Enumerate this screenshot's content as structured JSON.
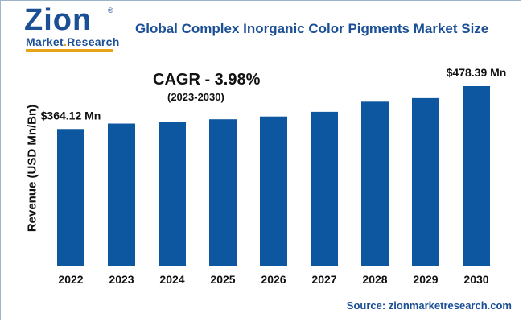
{
  "logo": {
    "main": "Zion",
    "sub_part1": "Market",
    "sub_dot": ".",
    "sub_part2": "Research",
    "reg_mark": "®"
  },
  "source": "Source: zionmarketresearch.com",
  "colors": {
    "bar": "#0d57a0",
    "title": "#1b4f96",
    "accent": "#e8a31a"
  },
  "chart_data": {
    "type": "bar",
    "title": "Global Complex Inorganic Color Pigments Market Size",
    "annotation": "CAGR - 3.98%",
    "annotation_sub": "(2023-2030)",
    "xlabel": "",
    "ylabel": "Revenue (USD Mn/Bn)",
    "categories": [
      "2022",
      "2023",
      "2024",
      "2025",
      "2026",
      "2027",
      "2028",
      "2029",
      "2030"
    ],
    "values": [
      364.12,
      378.6,
      382.5,
      390.0,
      397.5,
      410.0,
      437.0,
      446.5,
      478.39
    ],
    "value_labels": {
      "0": "$364.12 Mn",
      "8": "$478.39 Mn"
    },
    "ylim": [
      0,
      480
    ],
    "grid": false,
    "legend": "none"
  }
}
